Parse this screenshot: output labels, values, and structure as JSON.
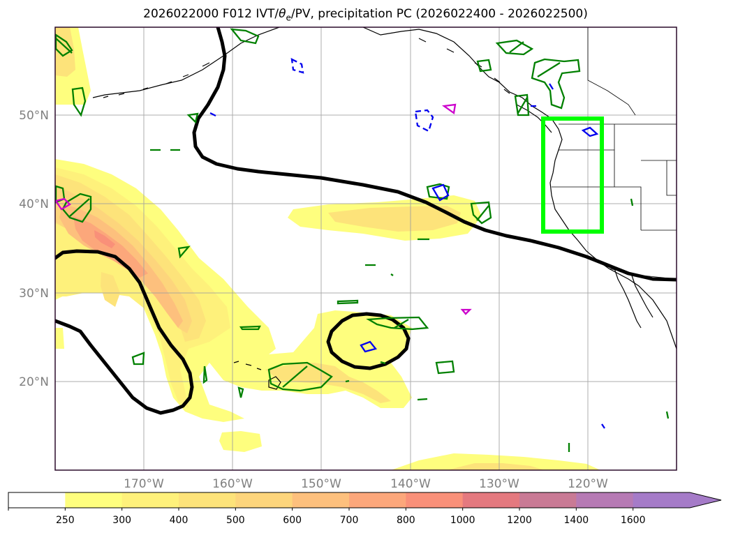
{
  "title": "2026022000 F012 IVT/θe/PV, precipitation PC (2026022400 - 2026022500)",
  "title_parts": {
    "prefix": "2026022000 F012 IVT/",
    "theta": "θ",
    "theta_sub": "e",
    "suffix": "/PV, precipitation PC (2026022400 - 2026022500)"
  },
  "map": {
    "lon_labels": [
      "170°W",
      "160°W",
      "150°W",
      "140°W",
      "130°W",
      "120°W"
    ],
    "lat_labels": [
      "50°N",
      "40°N",
      "30°N",
      "20°N"
    ],
    "gridlines": true
  },
  "colorbar": {
    "extend": "max",
    "tick_labels": [
      "250",
      "300",
      "400",
      "500",
      "600",
      "700",
      "800",
      "1000",
      "1200",
      "1400",
      "1600"
    ],
    "colors": [
      "#ffffff",
      "#fefe7e",
      "#fef17b",
      "#fde37a",
      "#fdd57c",
      "#fdc07d",
      "#fca77b",
      "#f99079",
      "#e4797f",
      "#c97a95",
      "#b67ab4",
      "#a57bc8"
    ]
  },
  "fill_colors": {
    "ivt_250": "#fefe7e",
    "ivt_300": "#fef17b",
    "ivt_400": "#fde37a",
    "ivt_500": "#fdd57c",
    "ivt_600": "#fdc07d",
    "ivt_700": "#fca77b",
    "ivt_800": "#f99079"
  },
  "line_colors": {
    "pv_contour": "#000000",
    "precip_pc": "#008000",
    "theta_e_cold": "#0000ee",
    "theta_e_warm": "#cc00cc",
    "highlight_box": "#00ff00",
    "coastline": "#000000"
  }
}
